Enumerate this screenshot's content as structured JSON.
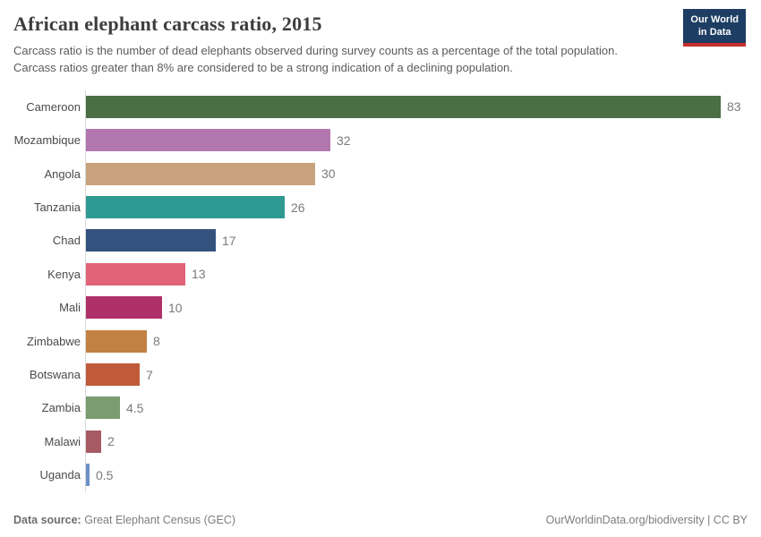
{
  "header": {
    "title": "African elephant carcass ratio, 2015",
    "subtitle": "Carcass ratio is the number of dead elephants observed during survey counts as a percentage of the total population. Carcass ratios greater than 8% are considered to be a strong indication of a declining population.",
    "logo": {
      "line1": "Our World",
      "line2": "in Data",
      "bg_color": "#1d3d63",
      "accent_color": "#c5302d"
    }
  },
  "chart_data": {
    "type": "bar",
    "orientation": "horizontal",
    "title": "African elephant carcass ratio, 2015",
    "xlabel": "",
    "ylabel": "",
    "xlim": [
      0,
      86.5
    ],
    "grid": false,
    "legend": false,
    "categories": [
      "Cameroon",
      "Mozambique",
      "Angola",
      "Tanzania",
      "Chad",
      "Kenya",
      "Mali",
      "Zimbabwe",
      "Botswana",
      "Zambia",
      "Malawi",
      "Uganda"
    ],
    "values": [
      83,
      32,
      30,
      26,
      17,
      13,
      10,
      8,
      7,
      4.5,
      2,
      0.5
    ],
    "bar_colors": [
      "#4c6e45",
      "#b277af",
      "#c9a37e",
      "#2f9a92",
      "#33527e",
      "#e06377",
      "#ad3168",
      "#c28142",
      "#c05b3a",
      "#7a9c6e",
      "#a65b64",
      "#6d90c9"
    ],
    "axis_line_color": "#d9d9d9"
  },
  "footer": {
    "source_label": "Data source:",
    "source_value": "Great Elephant Census (GEC)",
    "right_text": "OurWorldinData.org/biodiversity | CC BY"
  }
}
